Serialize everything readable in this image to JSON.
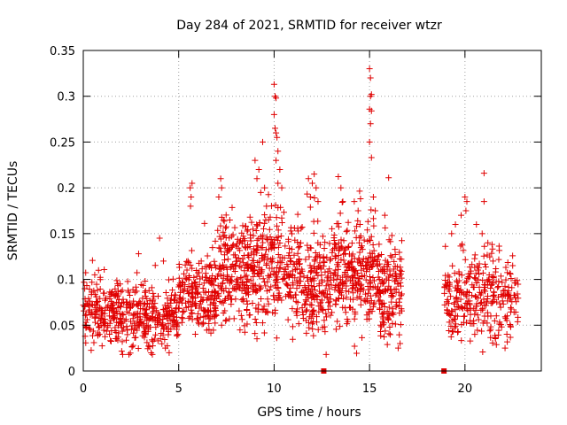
{
  "chart_data": {
    "type": "scatter",
    "title": "Day 284 of 2021, SRMTID for receiver wtzr",
    "xlabel": "GPS time / hours",
    "ylabel": "SRMTID / TECUs",
    "xlim": [
      0,
      24
    ],
    "ylim": [
      0,
      0.35
    ],
    "xticks": [
      0,
      5,
      10,
      15,
      20
    ],
    "yticks": [
      0,
      0.05,
      0.1,
      0.15,
      0.2,
      0.25,
      0.3,
      0.35
    ],
    "xtick_labels": [
      "0",
      "5",
      "10",
      "15",
      "20"
    ],
    "ytick_labels": [
      "0",
      "0.05",
      "0.1",
      "0.15",
      "0.2",
      "0.25",
      "0.3",
      "0.35"
    ],
    "grid": true,
    "marker": "plus",
    "series_color": "#e00000",
    "segments": [
      {
        "x0": 0.0,
        "x1": 2.0,
        "center": 0.062,
        "spread": 0.016,
        "count": 180
      },
      {
        "x0": 2.0,
        "x1": 5.0,
        "center": 0.058,
        "spread": 0.017,
        "count": 260
      },
      {
        "x0": 5.0,
        "x1": 7.0,
        "center": 0.082,
        "spread": 0.02,
        "count": 200
      },
      {
        "x0": 7.0,
        "x1": 9.0,
        "center": 0.108,
        "spread": 0.028,
        "count": 230
      },
      {
        "x0": 9.0,
        "x1": 11.5,
        "center": 0.112,
        "spread": 0.03,
        "count": 260
      },
      {
        "x0": 11.5,
        "x1": 13.5,
        "center": 0.098,
        "spread": 0.028,
        "count": 220
      },
      {
        "x0": 13.5,
        "x1": 15.5,
        "center": 0.102,
        "spread": 0.026,
        "count": 220
      },
      {
        "x0": 15.5,
        "x1": 16.7,
        "center": 0.085,
        "spread": 0.025,
        "count": 140
      },
      {
        "x0": 18.9,
        "x1": 20.5,
        "center": 0.078,
        "spread": 0.022,
        "count": 130
      },
      {
        "x0": 20.5,
        "x1": 22.8,
        "center": 0.08,
        "spread": 0.022,
        "count": 180
      }
    ],
    "highlights": [
      {
        "x": 5.6,
        "y": 0.2
      },
      {
        "x": 5.65,
        "y": 0.19
      },
      {
        "x": 5.7,
        "y": 0.205
      },
      {
        "x": 5.62,
        "y": 0.18
      },
      {
        "x": 7.2,
        "y": 0.21
      },
      {
        "x": 7.25,
        "y": 0.2
      },
      {
        "x": 7.1,
        "y": 0.19
      },
      {
        "x": 9.0,
        "y": 0.23
      },
      {
        "x": 9.1,
        "y": 0.21
      },
      {
        "x": 9.2,
        "y": 0.22
      },
      {
        "x": 9.4,
        "y": 0.25
      },
      {
        "x": 9.5,
        "y": 0.2
      },
      {
        "x": 9.6,
        "y": 0.18
      },
      {
        "x": 9.3,
        "y": 0.195
      },
      {
        "x": 10.0,
        "y": 0.313
      },
      {
        "x": 10.05,
        "y": 0.3
      },
      {
        "x": 10.1,
        "y": 0.298
      },
      {
        "x": 10.0,
        "y": 0.28
      },
      {
        "x": 10.05,
        "y": 0.265
      },
      {
        "x": 10.1,
        "y": 0.26
      },
      {
        "x": 10.15,
        "y": 0.255
      },
      {
        "x": 10.2,
        "y": 0.24
      },
      {
        "x": 10.1,
        "y": 0.23
      },
      {
        "x": 10.3,
        "y": 0.22
      },
      {
        "x": 10.2,
        "y": 0.205
      },
      {
        "x": 10.4,
        "y": 0.2
      },
      {
        "x": 11.8,
        "y": 0.21
      },
      {
        "x": 12.0,
        "y": 0.205
      },
      {
        "x": 12.1,
        "y": 0.215
      },
      {
        "x": 12.2,
        "y": 0.2
      },
      {
        "x": 11.9,
        "y": 0.19
      },
      {
        "x": 12.3,
        "y": 0.185
      },
      {
        "x": 13.5,
        "y": 0.2
      },
      {
        "x": 13.6,
        "y": 0.185
      },
      {
        "x": 14.2,
        "y": 0.185
      },
      {
        "x": 14.4,
        "y": 0.175
      },
      {
        "x": 14.5,
        "y": 0.16
      },
      {
        "x": 15.0,
        "y": 0.33
      },
      {
        "x": 15.05,
        "y": 0.32
      },
      {
        "x": 15.1,
        "y": 0.302
      },
      {
        "x": 15.05,
        "y": 0.3
      },
      {
        "x": 15.0,
        "y": 0.286
      },
      {
        "x": 15.1,
        "y": 0.284
      },
      {
        "x": 15.05,
        "y": 0.27
      },
      {
        "x": 15.0,
        "y": 0.25
      },
      {
        "x": 15.1,
        "y": 0.233
      },
      {
        "x": 15.2,
        "y": 0.19
      },
      {
        "x": 15.3,
        "y": 0.175
      },
      {
        "x": 16.0,
        "y": 0.211
      },
      {
        "x": 15.8,
        "y": 0.17
      },
      {
        "x": 19.5,
        "y": 0.16
      },
      {
        "x": 19.8,
        "y": 0.17
      },
      {
        "x": 19.3,
        "y": 0.15
      },
      {
        "x": 20.0,
        "y": 0.19
      },
      {
        "x": 20.1,
        "y": 0.185
      },
      {
        "x": 20.05,
        "y": 0.175
      },
      {
        "x": 20.6,
        "y": 0.16
      },
      {
        "x": 20.9,
        "y": 0.15
      },
      {
        "x": 21.0,
        "y": 0.216
      },
      {
        "x": 21.0,
        "y": 0.185
      },
      {
        "x": 21.2,
        "y": 0.14
      },
      {
        "x": 22.5,
        "y": 0.115
      },
      {
        "x": 4.0,
        "y": 0.145
      },
      {
        "x": 2.9,
        "y": 0.128
      },
      {
        "x": 4.2,
        "y": 0.12
      },
      {
        "x": 0.8,
        "y": 0.11
      },
      {
        "x": 0.6,
        "y": 0.105
      },
      {
        "x": 4.5,
        "y": 0.02
      },
      {
        "x": 4.3,
        "y": 0.025
      },
      {
        "x": 16.5,
        "y": 0.025
      },
      {
        "x": 16.6,
        "y": 0.03
      },
      {
        "x": 22.1,
        "y": 0.025
      }
    ],
    "gap_markers": [
      {
        "x": 12.6,
        "y": 0.0
      },
      {
        "x": 18.9,
        "y": 0.0
      }
    ]
  }
}
